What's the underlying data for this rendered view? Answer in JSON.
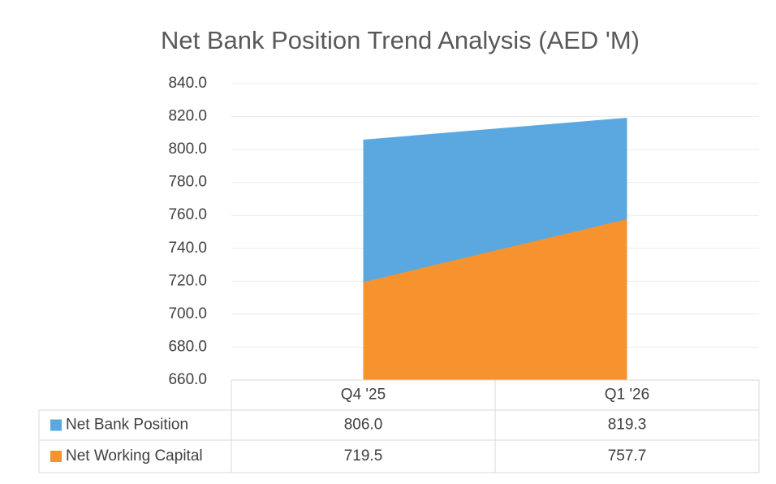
{
  "chart_data": {
    "type": "area",
    "title": "Net Bank Position Trend Analysis (AED 'M)",
    "categories": [
      "Q4 '25",
      "Q1 '26"
    ],
    "series": [
      {
        "name": "Net Bank Position",
        "color": "#5aa8df",
        "values": [
          806.0,
          819.3
        ],
        "value_labels": [
          "806.0",
          "819.3"
        ]
      },
      {
        "name": "Net Working Capital",
        "color": "#f7932e",
        "values": [
          719.5,
          757.7
        ],
        "value_labels": [
          "719.5",
          "757.7"
        ]
      }
    ],
    "ylim": [
      660,
      840
    ],
    "yticks": [
      {
        "value": 660,
        "label": "660.0"
      },
      {
        "value": 680,
        "label": "680.0"
      },
      {
        "value": 700,
        "label": "700.0"
      },
      {
        "value": 720,
        "label": "720.0"
      },
      {
        "value": 740,
        "label": "740.0"
      },
      {
        "value": 760,
        "label": "760.0"
      },
      {
        "value": 780,
        "label": "780.0"
      },
      {
        "value": 800,
        "label": "800.0"
      },
      {
        "value": 820,
        "label": "820.0"
      },
      {
        "value": 840,
        "label": "840.0"
      }
    ],
    "grid": true
  }
}
